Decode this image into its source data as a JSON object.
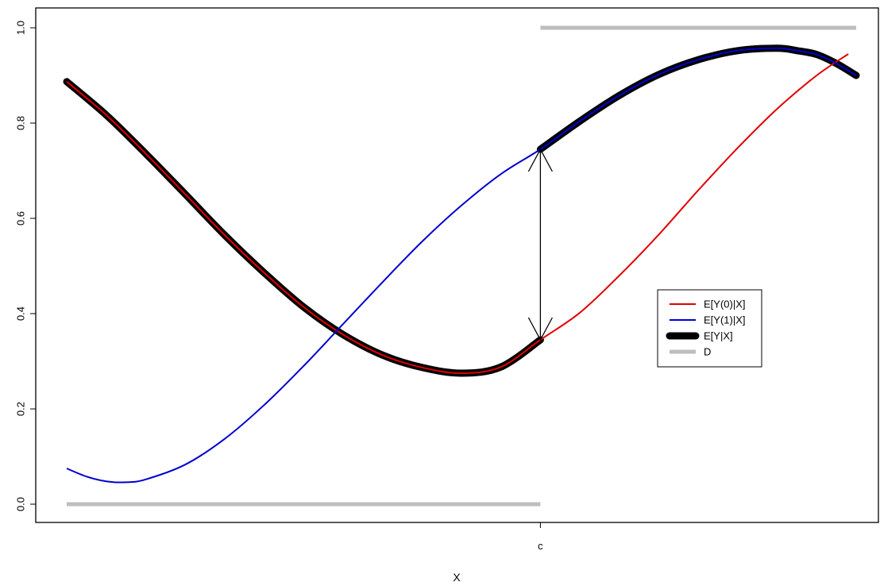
{
  "chart_data": {
    "type": "line",
    "title": "",
    "xlabel": "X",
    "ylabel": "",
    "xlim": [
      -1.0,
      1.0
    ],
    "ylim": [
      0.0,
      1.0
    ],
    "cutoff": 0.2,
    "x_ticks": [
      {
        "value": 0.2,
        "label": "c"
      }
    ],
    "y_ticks": [
      {
        "value": 0.0,
        "label": "0.0"
      },
      {
        "value": 0.2,
        "label": "0.2"
      },
      {
        "value": 0.4,
        "label": "0.4"
      },
      {
        "value": 0.6,
        "label": "0.6"
      },
      {
        "value": 0.8,
        "label": "0.8"
      },
      {
        "value": 1.0,
        "label": "1.0"
      }
    ],
    "series": [
      {
        "name": "E[Y(0)|X]",
        "color": "#e00000",
        "x": [
          -1.0,
          -0.9,
          -0.8,
          -0.7,
          -0.6,
          -0.5,
          -0.4,
          -0.3,
          -0.2,
          -0.1,
          0.0,
          0.1,
          0.2,
          0.3,
          0.4,
          0.5,
          0.6,
          0.7,
          0.8,
          0.9,
          0.98
        ],
        "y": [
          0.887,
          0.817,
          0.736,
          0.651,
          0.565,
          0.486,
          0.414,
          0.356,
          0.313,
          0.287,
          0.275,
          0.288,
          0.345,
          0.402,
          0.48,
          0.566,
          0.659,
          0.748,
          0.83,
          0.9,
          0.945
        ]
      },
      {
        "name": "E[Y(1)|X]",
        "color": "#0000d0",
        "x": [
          -1.0,
          -0.95,
          -0.9,
          -0.85,
          -0.8,
          -0.7,
          -0.6,
          -0.5,
          -0.4,
          -0.3,
          -0.2,
          -0.1,
          0.0,
          0.1,
          0.2,
          0.3,
          0.4,
          0.5,
          0.6,
          0.7,
          0.8,
          0.85,
          0.9,
          0.95,
          1.0
        ],
        "y": [
          0.075,
          0.058,
          0.048,
          0.046,
          0.052,
          0.083,
          0.137,
          0.208,
          0.29,
          0.378,
          0.466,
          0.551,
          0.627,
          0.693,
          0.745,
          0.804,
          0.858,
          0.902,
          0.933,
          0.952,
          0.957,
          0.952,
          0.944,
          0.925,
          0.9
        ]
      },
      {
        "name": "E[Y|X]",
        "color": "#000000",
        "x": [
          -1.0,
          -0.9,
          -0.8,
          -0.7,
          -0.6,
          -0.5,
          -0.4,
          -0.3,
          -0.2,
          -0.1,
          0.0,
          0.1,
          0.2,
          0.2,
          0.3,
          0.4,
          0.5,
          0.6,
          0.7,
          0.8,
          0.85,
          0.9,
          0.95,
          1.0
        ],
        "y": [
          0.887,
          0.817,
          0.736,
          0.651,
          0.565,
          0.486,
          0.414,
          0.356,
          0.313,
          0.287,
          0.275,
          0.288,
          0.345,
          0.745,
          0.804,
          0.858,
          0.902,
          0.933,
          0.952,
          0.957,
          0.952,
          0.944,
          0.925,
          0.9
        ]
      },
      {
        "name": "D",
        "color": "#bebebe",
        "x": [
          -1.0,
          0.2,
          0.2,
          1.0
        ],
        "y": [
          0.0,
          0.0,
          1.0,
          1.0
        ]
      }
    ],
    "annotation": {
      "type": "double-arrow",
      "x": 0.2,
      "y_from": 0.345,
      "y_to": 0.745
    },
    "legend_position": "right-middle",
    "grid": false
  }
}
